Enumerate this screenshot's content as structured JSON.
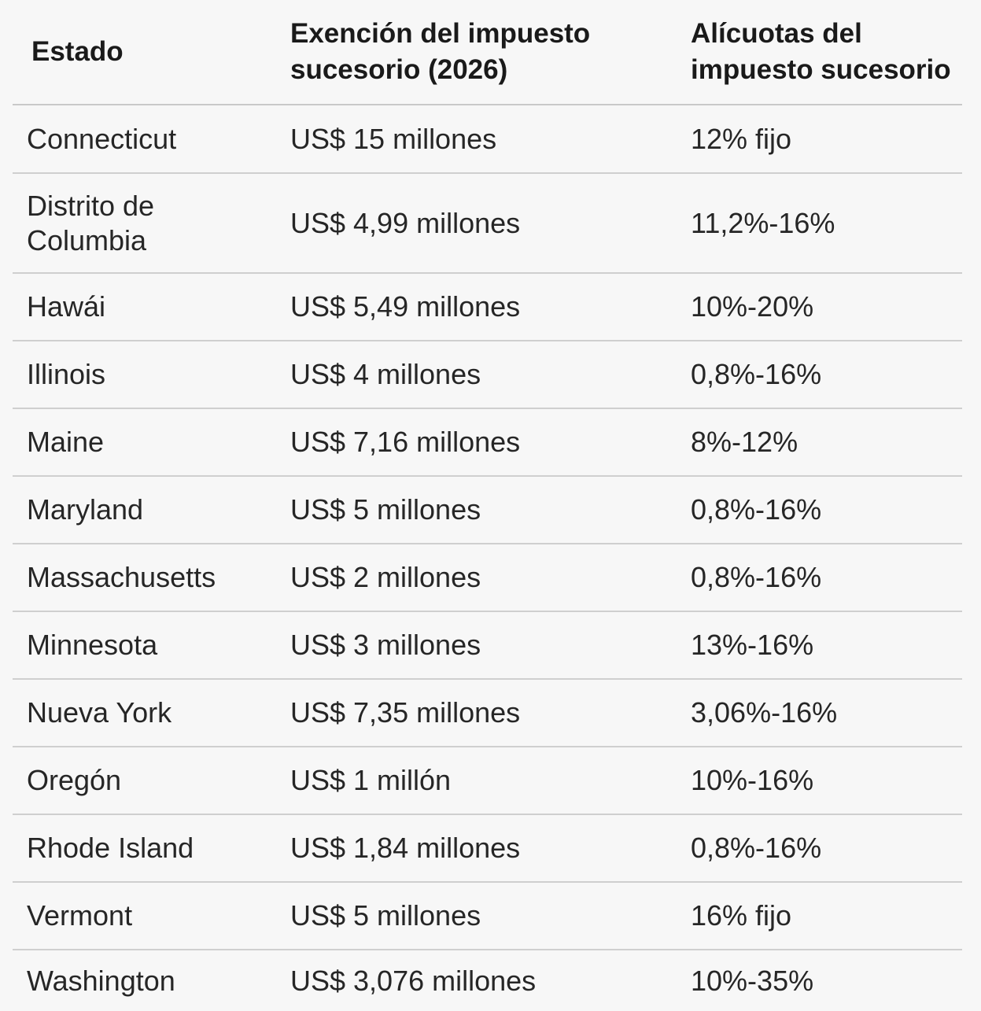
{
  "table": {
    "headers": [
      "Estado",
      "Exención del impuesto sucesorio (2026)",
      "Alícuotas del impuesto sucesorio"
    ],
    "rows": [
      {
        "state": "Connecticut",
        "exemption": "US$ 15 millones",
        "rate": "12% fijo"
      },
      {
        "state": "Distrito de Columbia",
        "exemption": "US$ 4,99 millones",
        "rate": "11,2%-16%"
      },
      {
        "state": "Hawái",
        "exemption": "US$ 5,49 millones",
        "rate": "10%-20%"
      },
      {
        "state": "Illinois",
        "exemption": "US$ 4 millones",
        "rate": "0,8%-16%"
      },
      {
        "state": "Maine",
        "exemption": "US$ 7,16 millones",
        "rate": "8%-12%"
      },
      {
        "state": "Maryland",
        "exemption": "US$ 5 millones",
        "rate": "0,8%-16%"
      },
      {
        "state": "Massachusetts",
        "exemption": "US$ 2 millones",
        "rate": "0,8%-16%"
      },
      {
        "state": "Minnesota",
        "exemption": "US$ 3 millones",
        "rate": "13%-16%"
      },
      {
        "state": "Nueva York",
        "exemption": "US$ 7,35 millones",
        "rate": "3,06%-16%"
      },
      {
        "state": "Oregón",
        "exemption": "US$ 1 millón",
        "rate": "10%-16%"
      },
      {
        "state": "Rhode Island",
        "exemption": "US$ 1,84 millones",
        "rate": "0,8%-16%"
      },
      {
        "state": "Vermont",
        "exemption": "US$ 5 millones",
        "rate": "16% fijo"
      },
      {
        "state": "Washington",
        "exemption": "US$ 3,076 millones",
        "rate": "10%-35%"
      }
    ]
  }
}
